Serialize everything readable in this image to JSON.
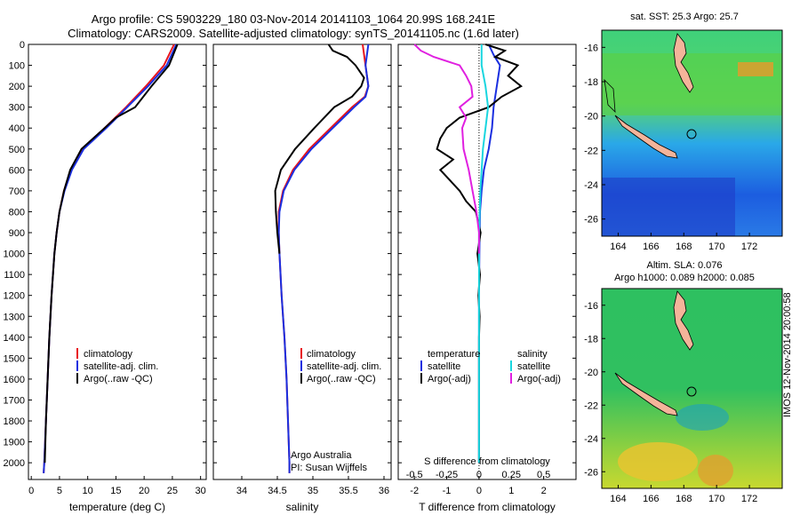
{
  "header": {
    "line1": "Argo profile: CS 5903229_180 03-Nov-2014 20141103_1064 20.99S 168.241E",
    "line2": "Climatology: CARS2009. Satellite-adjusted climatology: synTS_20141105.nc (1.6d later)"
  },
  "colors": {
    "climatology": "#e8141c",
    "satellite": "#1a2fe0",
    "argo": "#000000",
    "sat_salinity": "#19d6df",
    "argo_salinity": "#e020e0",
    "land": "#f4b49a"
  },
  "depth_ticks": [
    0,
    100,
    200,
    300,
    400,
    500,
    600,
    700,
    800,
    900,
    1000,
    1100,
    1200,
    1300,
    1400,
    1500,
    1600,
    1700,
    1800,
    1900,
    2000
  ],
  "chart_data": [
    {
      "type": "line",
      "id": "temperature",
      "xlabel": "temperature (deg C)",
      "ylabel": "",
      "xlim": [
        -0.5,
        31
      ],
      "ylim": [
        2080,
        0
      ],
      "xticks": [
        "0",
        "5",
        "10",
        "15",
        "20",
        "25",
        "30"
      ],
      "legend": [
        "climatology",
        "satellite-adj. clim.",
        "Argo(..raw -QC)"
      ],
      "series": [
        {
          "name": "climatology",
          "y": [
            0,
            100,
            200,
            300,
            400,
            500,
            600,
            700,
            800,
            900,
            1000,
            1200,
            1400,
            1600,
            1800,
            2000,
            2050
          ],
          "x": [
            25.3,
            23.5,
            20.3,
            16.8,
            13.0,
            9.0,
            7.0,
            5.8,
            5.0,
            4.5,
            4.1,
            3.6,
            3.2,
            2.9,
            2.6,
            2.3,
            2.2
          ]
        },
        {
          "name": "satellite-adj. clim.",
          "y": [
            0,
            100,
            200,
            300,
            400,
            500,
            600,
            700,
            800,
            900,
            1000,
            1200,
            1400,
            1600,
            1800,
            2000,
            2050
          ],
          "x": [
            25.7,
            24.0,
            20.7,
            17.0,
            13.3,
            9.3,
            7.2,
            5.9,
            5.0,
            4.5,
            4.1,
            3.6,
            3.2,
            2.9,
            2.6,
            2.3,
            2.2
          ]
        },
        {
          "name": "Argo(..raw -QC)",
          "y": [
            0,
            100,
            200,
            300,
            350,
            400,
            500,
            600,
            700,
            800,
            900,
            1000,
            1200,
            1400,
            1600,
            1800,
            2000
          ],
          "x": [
            25.9,
            24.4,
            21.3,
            18.4,
            15.0,
            13.0,
            8.9,
            6.9,
            5.8,
            5.0,
            4.5,
            4.1,
            3.6,
            3.2,
            2.9,
            2.6,
            2.4
          ]
        }
      ]
    },
    {
      "type": "line",
      "id": "salinity",
      "xlabel": "salinity",
      "ylabel": "",
      "xlim": [
        33.6,
        36.1
      ],
      "ylim": [
        2080,
        0
      ],
      "xticks": [
        "34",
        "34.5",
        "35",
        "35.5",
        "36"
      ],
      "legend": [
        "climatology",
        "satellite-adj. clim.",
        "Argo(..raw -QC)"
      ],
      "annotation": [
        "Argo Australia",
        "PI: Susan Wijffels"
      ],
      "series": [
        {
          "name": "climatology",
          "y": [
            0,
            50,
            100,
            150,
            200,
            250,
            300,
            400,
            500,
            600,
            700,
            800,
            900,
            1000,
            1200,
            1400,
            1600,
            1800,
            2000,
            2050
          ],
          "x": [
            35.7,
            35.72,
            35.74,
            35.76,
            35.78,
            35.73,
            35.55,
            35.25,
            34.95,
            34.72,
            34.58,
            34.52,
            34.52,
            34.53,
            34.56,
            34.6,
            34.63,
            34.65,
            34.67,
            34.67
          ]
        },
        {
          "name": "satellite-adj. clim.",
          "y": [
            0,
            50,
            100,
            150,
            200,
            250,
            300,
            400,
            500,
            600,
            700,
            800,
            900,
            1000,
            1200,
            1400,
            1600,
            1800,
            2000,
            2050
          ],
          "x": [
            35.78,
            35.76,
            35.74,
            35.76,
            35.78,
            35.74,
            35.58,
            35.28,
            34.98,
            34.74,
            34.59,
            34.53,
            34.52,
            34.53,
            34.56,
            34.6,
            34.63,
            34.65,
            34.67,
            34.67
          ]
        },
        {
          "name": "Argo(..raw -QC)",
          "y": [
            0,
            30,
            60,
            100,
            130,
            160,
            200,
            250,
            300,
            400,
            500,
            600,
            700,
            800,
            900,
            1000
          ],
          "x": [
            35.22,
            35.28,
            35.48,
            35.6,
            35.66,
            35.72,
            35.68,
            35.55,
            35.3,
            35.02,
            34.75,
            34.55,
            34.47,
            34.48,
            34.5,
            34.53
          ]
        }
      ]
    },
    {
      "type": "line",
      "id": "differences",
      "xlabel": "T difference from climatology",
      "xlabel2": "S difference from climatology",
      "xlim": [
        -2.5,
        3
      ],
      "ylim": [
        2080,
        0
      ],
      "xticks": [
        "-2",
        "-1",
        "0",
        "1",
        "2"
      ],
      "x2ticks": [
        "-0.5",
        "-0.25",
        "0",
        "0.25",
        "0.5"
      ],
      "legend_left": [
        "temperature",
        "satellite",
        "Argo(-adj)"
      ],
      "legend_right": [
        "salinity",
        "satellite",
        "Argo(-adj)"
      ],
      "series": [
        {
          "name": "satellite",
          "y": [
            0,
            50,
            100,
            150,
            200,
            300,
            400,
            500,
            600,
            700,
            800,
            900,
            1000,
            1200,
            1500,
            2000
          ],
          "x": [
            0.3,
            0.45,
            0.65,
            0.6,
            0.55,
            0.45,
            0.4,
            0.3,
            0.15,
            0.08,
            0.03,
            0.02,
            0.01,
            0.0,
            0.0,
            0.0
          ]
        },
        {
          "name": "Argo(-adj)",
          "y": [
            0,
            30,
            60,
            100,
            150,
            200,
            250,
            300,
            350,
            400,
            450,
            500,
            550,
            600,
            650,
            700,
            750,
            800,
            900,
            1000,
            1100,
            1200,
            1300,
            1400,
            1500,
            1700,
            2000
          ],
          "x": [
            0.2,
            0.8,
            0.5,
            1.2,
            0.9,
            1.3,
            0.7,
            0.3,
            -0.6,
            -1.0,
            -1.2,
            -1.3,
            -0.8,
            -1.2,
            -0.9,
            -0.6,
            -0.4,
            -0.1,
            0.05,
            -0.05,
            0.03,
            -0.02,
            0.02,
            0.0,
            0.0,
            0.0,
            0.0
          ]
        },
        {
          "name": "satellite",
          "y": [
            0,
            100,
            200,
            300,
            400,
            500,
            700,
            900,
            1200,
            1600,
            2000
          ],
          "x": [
            0.02,
            0.02,
            0.05,
            0.07,
            0.05,
            0.03,
            0.01,
            0.0,
            0.0,
            0.0,
            0.0
          ]
        },
        {
          "name": "Argo(-adj)",
          "y": [
            0,
            30,
            60,
            100,
            150,
            200,
            250,
            300,
            350,
            400,
            500,
            600,
            700,
            800,
            900,
            1000
          ],
          "x": [
            -0.5,
            -0.45,
            -0.35,
            -0.15,
            -0.1,
            -0.06,
            -0.05,
            -0.15,
            -0.1,
            -0.13,
            -0.12,
            -0.08,
            -0.05,
            -0.02,
            0.0,
            0.0
          ]
        }
      ]
    },
    {
      "type": "heatmap",
      "id": "sst_map",
      "title": "sat. SST: 25.3  Argo: 25.7",
      "xlim": [
        163,
        174
      ],
      "ylim": [
        -27,
        -15
      ],
      "xticks": [
        "164",
        "166",
        "168",
        "170",
        "172"
      ],
      "yticks": [
        "-16",
        "-18",
        "-20",
        "-22",
        "-24",
        "-26"
      ],
      "marker": {
        "lon": 168.241,
        "lat": -20.99
      }
    },
    {
      "type": "heatmap",
      "id": "sla_map",
      "title": "Altim. SLA: 0.076",
      "subtitle": "Argo h1000: 0.089  h2000: 0.085",
      "xlim": [
        163,
        174
      ],
      "ylim": [
        -27,
        -15
      ],
      "xticks": [
        "164",
        "166",
        "168",
        "170",
        "172"
      ],
      "yticks": [
        "-16",
        "-18",
        "-20",
        "-22",
        "-24",
        "-26"
      ],
      "marker": {
        "lon": 168.241,
        "lat": -20.99
      }
    }
  ],
  "footer": {
    "stamp": "IMOS 12-Nov-2014 20:00:58"
  }
}
